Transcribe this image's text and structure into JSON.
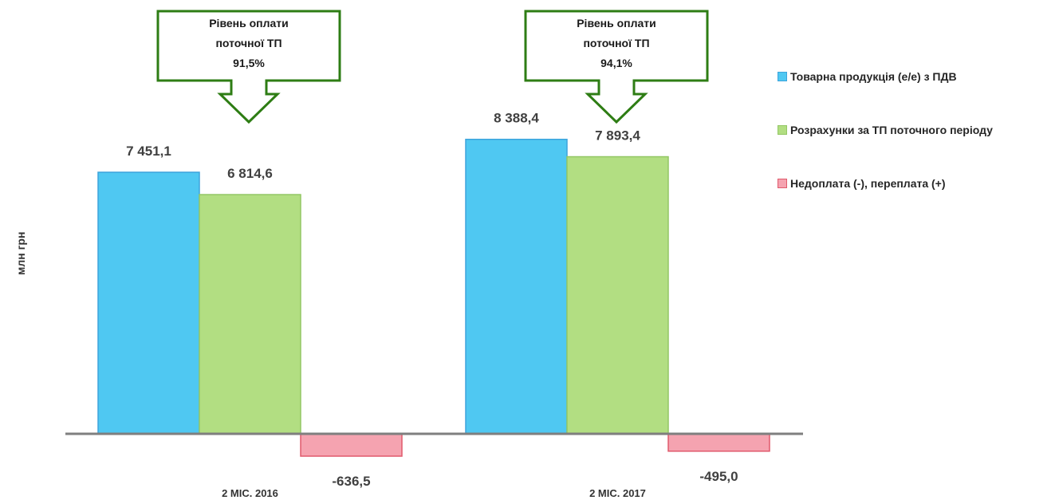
{
  "chart_data": {
    "type": "bar",
    "ylabel": "млн грн",
    "categories": [
      "2 МІС. 2016",
      "2 МІС. 2017"
    ],
    "series": [
      {
        "name": "Товарна продукція (е/е) з ПДВ",
        "color": "#4FC8F2",
        "border": "#3DA4DC",
        "values": [
          7451.1,
          8388.4
        ],
        "labels": [
          "7 451,1",
          "8 388,4"
        ]
      },
      {
        "name": "Розрахунки за ТП поточного періоду",
        "color": "#B2DE82",
        "border": "#93C765",
        "values": [
          6814.6,
          7893.4
        ],
        "labels": [
          "6 814,6",
          "7 893,4"
        ]
      },
      {
        "name": "Недоплата (-), переплата (+)",
        "color": "#F5A3B0",
        "border": "#E05A6C",
        "values": [
          -636.5,
          -495.0
        ],
        "labels": [
          "-636,5",
          "-495,0"
        ]
      }
    ],
    "ylim": [
      -800,
      8800
    ],
    "grid": false,
    "legend": "right",
    "callouts": [
      {
        "lines": [
          "Рівень оплати",
          "поточної ТП",
          "91,5%"
        ]
      },
      {
        "lines": [
          "Рівень оплати",
          "поточної ТП",
          "94,1%"
        ]
      }
    ],
    "callout_color": "#2E7D14",
    "axis_color": "#7F7F7F"
  }
}
